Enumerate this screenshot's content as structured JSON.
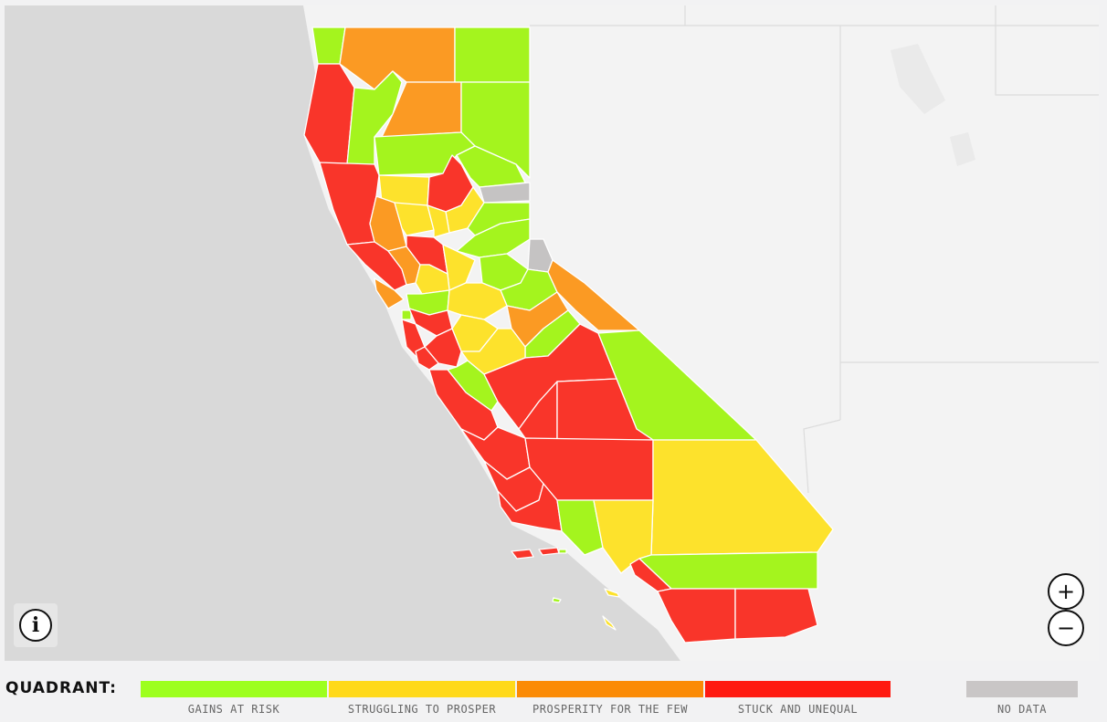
{
  "legend": {
    "title": "QUADRANT:",
    "items": [
      {
        "label": "GAINS AT RISK",
        "color": "#9dff1e"
      },
      {
        "label": "STRUGGLING TO PROSPER",
        "color": "#ffd91a"
      },
      {
        "label": "PROSPERITY FOR THE FEW",
        "color": "#fb8b06"
      },
      {
        "label": "STUCK AND UNEQUAL",
        "color": "#ff1a10"
      },
      {
        "label": "NO DATA",
        "color": "#c9c6c6"
      }
    ]
  },
  "map_colors": {
    "gains": "#a4f41e",
    "struggling": "#fde22c",
    "few": "#fb9a23",
    "stuck": "#f9352a",
    "nodata": "#c5c3c3",
    "ocean": "#d9d9d9",
    "land": "#f2f2f2"
  },
  "controls": {
    "info": "i",
    "zoom_in": "+",
    "zoom_out": "−"
  }
}
